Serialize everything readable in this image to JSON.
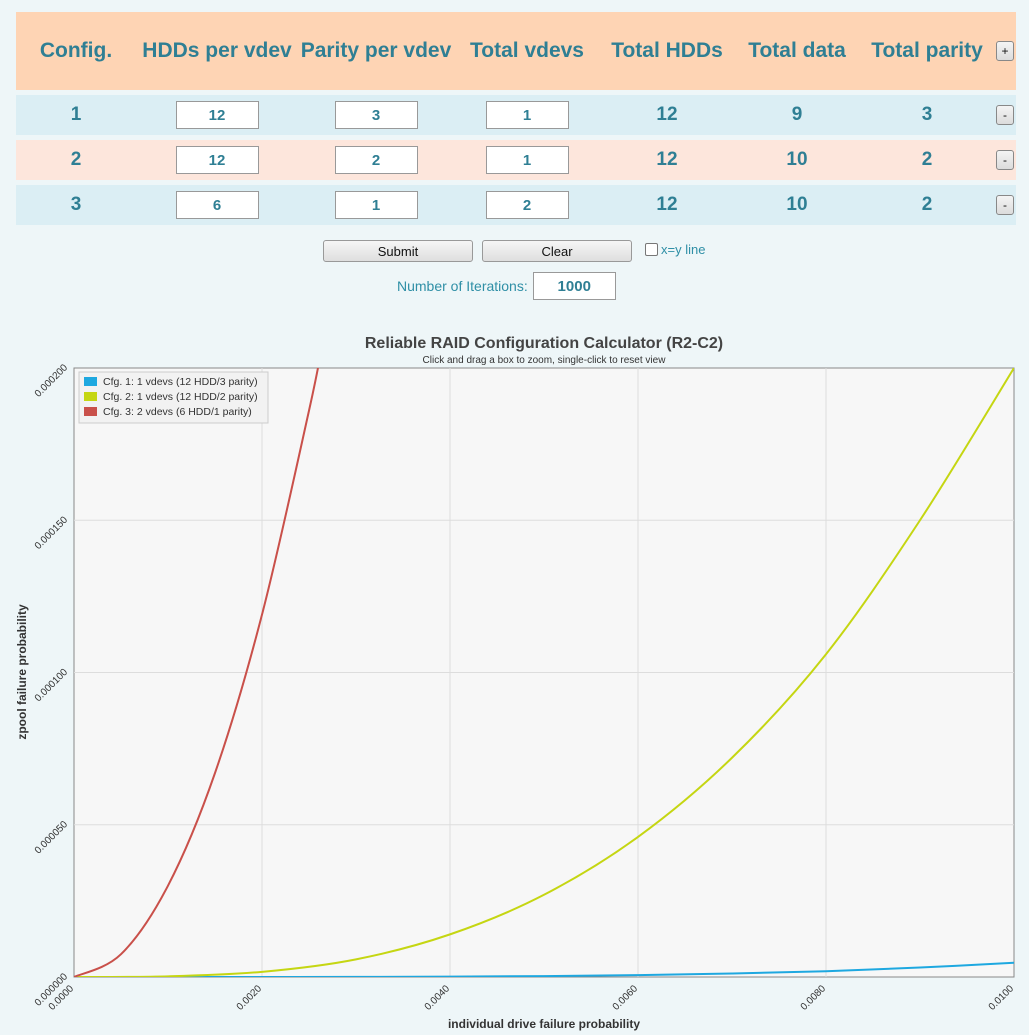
{
  "table": {
    "headers": [
      "Config.",
      "HDDs per vdev",
      "Parity per vdev",
      "Total vdevs",
      "Total HDDs",
      "Total data",
      "Total parity"
    ],
    "add_label": "+",
    "rows": [
      {
        "config": "1",
        "hdds_per_vdev": "12",
        "parity_per_vdev": "3",
        "total_vdevs": "1",
        "total_hdds": "12",
        "total_data": "9",
        "total_parity": "3",
        "remove_label": "-"
      },
      {
        "config": "2",
        "hdds_per_vdev": "12",
        "parity_per_vdev": "2",
        "total_vdevs": "1",
        "total_hdds": "12",
        "total_data": "10",
        "total_parity": "2",
        "remove_label": "-"
      },
      {
        "config": "3",
        "hdds_per_vdev": "6",
        "parity_per_vdev": "1",
        "total_vdevs": "2",
        "total_hdds": "12",
        "total_data": "10",
        "total_parity": "2",
        "remove_label": "-"
      }
    ]
  },
  "controls": {
    "submit_label": "Submit",
    "clear_label": "Clear",
    "xy_line_label": "x=y line",
    "xy_line_checked": false,
    "iterations_label": "Number of Iterations:",
    "iterations_value": "1000"
  },
  "colors": {
    "text_accent": "#2f7f94",
    "header_bg": "#fed4b4",
    "row_blue": "#dbeef4",
    "row_peach": "#fde6dc"
  },
  "chart_data": {
    "type": "line",
    "title": "Reliable RAID Configuration Calculator (R2-C2)",
    "subtitle": "Click and drag a box to zoom, single-click to reset view",
    "xlabel": "individual drive failure probability",
    "ylabel": "zpool failure probability",
    "xlim": [
      0,
      0.01
    ],
    "ylim": [
      0,
      0.0002
    ],
    "x_ticks": [
      "0.0000",
      "0.0020",
      "0.0040",
      "0.0060",
      "0.0080",
      "0.0100"
    ],
    "y_ticks": [
      "0.000000",
      "0.000050",
      "0.000100",
      "0.000150",
      "0.000200"
    ],
    "grid": true,
    "legend_position": "top-left",
    "series": [
      {
        "name": "Cfg. 1: 1 vdevs (12 HDD/3 parity)",
        "color": "#1ea8e0",
        "x": [
          0,
          0.001,
          0.002,
          0.003,
          0.004,
          0.005,
          0.006,
          0.007,
          0.008,
          0.009,
          0.01
        ],
        "y": [
          0,
          4.9e-10,
          7.8e-09,
          3.9e-08,
          1.2e-07,
          3e-07,
          6.2e-07,
          1.15e-06,
          1.9e-06,
          3.1e-06,
          4.7e-06
        ]
      },
      {
        "name": "Cfg. 2: 1 vdevs (12 HDD/2 parity)",
        "color": "#c5d612",
        "x": [
          0,
          0.001,
          0.002,
          0.003,
          0.004,
          0.005,
          0.006,
          0.007,
          0.008,
          0.009,
          0.01
        ],
        "y": [
          0,
          2.2e-07,
          1.7e-06,
          5.8e-06,
          1.4e-05,
          2.7e-05,
          4.6e-05,
          7.2e-05,
          0.000106,
          0.00015,
          0.0002
        ]
      },
      {
        "name": "Cfg. 3: 2 vdevs (6 HDD/1 parity)",
        "color": "#c9504a",
        "x": [
          0,
          0.0005,
          0.001,
          0.0015,
          0.002,
          0.0025,
          0.00265
        ],
        "y": [
          0,
          7.5e-06,
          3e-05,
          6.7e-05,
          0.000119,
          0.000186,
          0.000209
        ]
      }
    ]
  }
}
